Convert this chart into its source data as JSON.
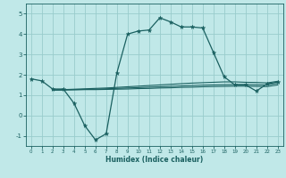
{
  "xlabel": "Humidex (Indice chaleur)",
  "xlim": [
    -0.5,
    23.5
  ],
  "ylim": [
    -1.5,
    5.5
  ],
  "yticks": [
    -1,
    0,
    1,
    2,
    3,
    4,
    5
  ],
  "xticks": [
    0,
    1,
    2,
    3,
    4,
    5,
    6,
    7,
    8,
    9,
    10,
    11,
    12,
    13,
    14,
    15,
    16,
    17,
    18,
    19,
    20,
    21,
    22,
    23
  ],
  "bg_color": "#c0e8e8",
  "grid_color": "#99cccc",
  "line_color": "#1a6060",
  "line1_x": [
    0,
    1,
    2,
    3,
    4,
    5,
    6,
    7,
    8,
    9,
    10,
    11,
    12,
    13,
    14,
    15,
    16,
    17,
    18,
    19,
    20,
    21,
    22,
    23
  ],
  "line1_y": [
    1.8,
    1.7,
    1.3,
    1.3,
    0.6,
    -0.5,
    -1.2,
    -0.9,
    2.1,
    4.0,
    4.15,
    4.2,
    4.8,
    4.6,
    4.35,
    4.35,
    4.3,
    3.1,
    1.9,
    1.5,
    1.5,
    1.2,
    1.55,
    1.65
  ],
  "line2_x": [
    2,
    3,
    4,
    5,
    6,
    7,
    8,
    9,
    10,
    11,
    12,
    13,
    14,
    15,
    16,
    17,
    18,
    19,
    20,
    21,
    22,
    23
  ],
  "line2_y": [
    1.25,
    1.27,
    1.29,
    1.31,
    1.33,
    1.35,
    1.38,
    1.41,
    1.44,
    1.47,
    1.5,
    1.53,
    1.56,
    1.59,
    1.61,
    1.63,
    1.65,
    1.65,
    1.63,
    1.62,
    1.6,
    1.68
  ],
  "line3_x": [
    2,
    3,
    4,
    5,
    6,
    7,
    8,
    9,
    10,
    11,
    12,
    13,
    14,
    15,
    16,
    17,
    18,
    19,
    20,
    21,
    22,
    23
  ],
  "line3_y": [
    1.25,
    1.26,
    1.27,
    1.28,
    1.29,
    1.31,
    1.33,
    1.35,
    1.37,
    1.39,
    1.41,
    1.43,
    1.45,
    1.47,
    1.49,
    1.5,
    1.51,
    1.52,
    1.52,
    1.51,
    1.5,
    1.58
  ],
  "line4_x": [
    2,
    3,
    4,
    5,
    6,
    7,
    8,
    9,
    10,
    11,
    12,
    13,
    14,
    15,
    16,
    17,
    18,
    19,
    20,
    21,
    22,
    23
  ],
  "line4_y": [
    1.25,
    1.25,
    1.26,
    1.27,
    1.27,
    1.28,
    1.29,
    1.3,
    1.32,
    1.33,
    1.35,
    1.36,
    1.38,
    1.39,
    1.41,
    1.42,
    1.43,
    1.44,
    1.44,
    1.43,
    1.42,
    1.5
  ]
}
